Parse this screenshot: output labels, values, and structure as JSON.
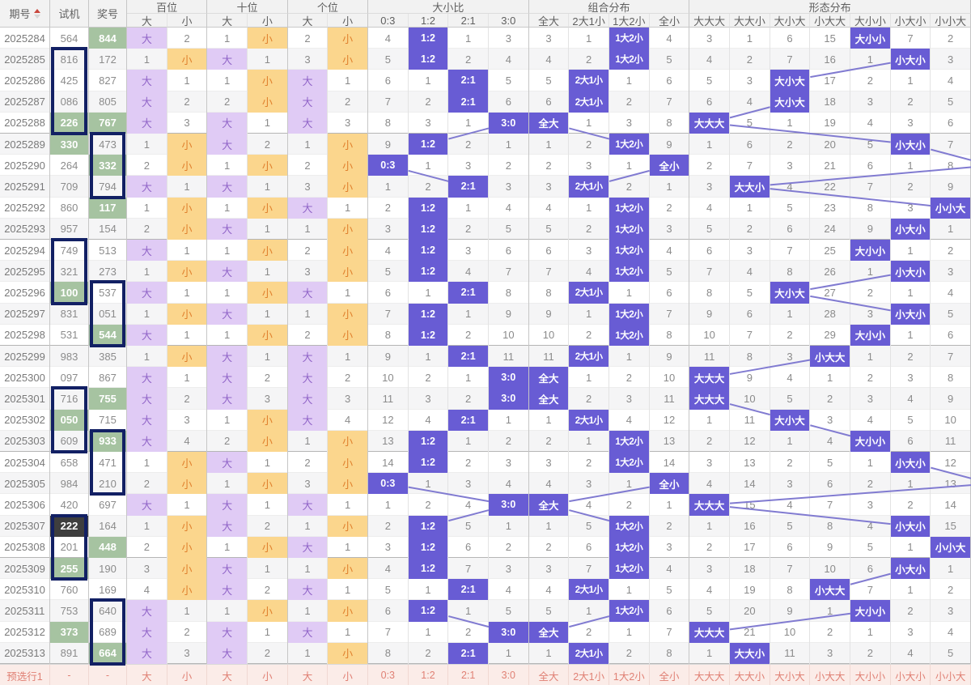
{
  "table": {
    "fixed_headers": [
      "期号",
      "试机",
      "奖号"
    ],
    "groups": [
      {
        "label": "百位",
        "span": 2
      },
      {
        "label": "十位",
        "span": 2
      },
      {
        "label": "个位",
        "span": 2
      },
      {
        "label": "大小比",
        "span": 4
      },
      {
        "label": "组合分布",
        "span": 4
      },
      {
        "label": "形态分布",
        "span": 7
      }
    ],
    "col_labels": [
      "大",
      "小",
      "大",
      "小",
      "大",
      "小",
      "0:3",
      "1:2",
      "2:1",
      "3:0",
      "全大",
      "2大1小",
      "1大2小",
      "全小",
      "大大大",
      "大大小",
      "大小大",
      "小大大",
      "大小小",
      "小大小",
      "小小大"
    ],
    "rows": [
      {
        "period": "2025284",
        "shiji": "564",
        "shiji_style": "",
        "jiang": "844",
        "jiang_style": "g",
        "cells": [
          "*",
          2,
          1,
          "*",
          2,
          "*",
          4,
          "*",
          1,
          3,
          3,
          1,
          "*",
          4,
          3,
          1,
          6,
          15,
          "*",
          7,
          2
        ]
      },
      {
        "period": "2025285",
        "shiji": "816",
        "shiji_style": "",
        "jiang": "172",
        "jiang_style": "",
        "cells": [
          1,
          "*",
          "*",
          1,
          3,
          "*",
          5,
          "*",
          2,
          4,
          4,
          2,
          "*",
          5,
          4,
          2,
          7,
          16,
          1,
          "*",
          3
        ]
      },
      {
        "period": "2025286",
        "shiji": "425",
        "shiji_style": "",
        "jiang": "827",
        "jiang_style": "",
        "cells": [
          "*",
          1,
          1,
          "*",
          "*",
          1,
          6,
          1,
          "*",
          5,
          5,
          "*",
          1,
          6,
          5,
          3,
          "*",
          17,
          2,
          1,
          4
        ]
      },
      {
        "period": "2025287",
        "shiji": "086",
        "shiji_style": "",
        "jiang": "805",
        "jiang_style": "",
        "cells": [
          "*",
          2,
          2,
          "*",
          "*",
          2,
          7,
          2,
          "*",
          6,
          6,
          "*",
          2,
          7,
          6,
          4,
          "*",
          18,
          3,
          2,
          5
        ]
      },
      {
        "period": "2025288",
        "shiji": "226",
        "shiji_style": "g",
        "jiang": "767",
        "jiang_style": "g",
        "cells": [
          "*",
          3,
          "*",
          1,
          "*",
          3,
          8,
          3,
          1,
          "*",
          "*",
          1,
          3,
          8,
          "*",
          5,
          1,
          19,
          4,
          3,
          6
        ]
      },
      {
        "period": "2025289",
        "shiji": "330",
        "shiji_style": "g",
        "jiang": "473",
        "jiang_style": "",
        "cells": [
          1,
          "*",
          "*",
          2,
          1,
          "*",
          9,
          "*",
          2,
          1,
          1,
          2,
          "*",
          9,
          1,
          6,
          2,
          20,
          5,
          "*",
          7
        ]
      },
      {
        "period": "2025290",
        "shiji": "264",
        "shiji_style": "",
        "jiang": "332",
        "jiang_style": "g",
        "cells": [
          2,
          "*",
          1,
          "*",
          2,
          "*",
          "*",
          1,
          3,
          2,
          2,
          3,
          1,
          "*",
          2,
          7,
          3,
          21,
          6,
          1,
          8
        ]
      },
      {
        "period": "2025291",
        "shiji": "709",
        "shiji_style": "",
        "jiang": "794",
        "jiang_style": "",
        "cells": [
          "*",
          1,
          "*",
          1,
          3,
          "*",
          1,
          2,
          "*",
          3,
          3,
          "*",
          2,
          1,
          3,
          "*",
          4,
          22,
          7,
          2,
          9
        ]
      },
      {
        "period": "2025292",
        "shiji": "860",
        "shiji_style": "",
        "jiang": "117",
        "jiang_style": "g",
        "cells": [
          1,
          "*",
          1,
          "*",
          "*",
          1,
          2,
          "*",
          1,
          4,
          4,
          1,
          "*",
          2,
          4,
          1,
          5,
          23,
          8,
          3,
          "*"
        ]
      },
      {
        "period": "2025293",
        "shiji": "957",
        "shiji_style": "",
        "jiang": "154",
        "jiang_style": "",
        "cells": [
          2,
          "*",
          "*",
          1,
          1,
          "*",
          3,
          "*",
          2,
          5,
          5,
          2,
          "*",
          3,
          5,
          2,
          6,
          24,
          9,
          "*",
          1
        ]
      },
      {
        "period": "2025294",
        "shiji": "749",
        "shiji_style": "",
        "jiang": "513",
        "jiang_style": "",
        "cells": [
          "*",
          1,
          1,
          "*",
          2,
          "*",
          4,
          "*",
          3,
          6,
          6,
          3,
          "*",
          4,
          6,
          3,
          7,
          25,
          "*",
          1,
          2
        ]
      },
      {
        "period": "2025295",
        "shiji": "321",
        "shiji_style": "",
        "jiang": "273",
        "jiang_style": "",
        "cells": [
          1,
          "*",
          "*",
          1,
          3,
          "*",
          5,
          "*",
          4,
          7,
          7,
          4,
          "*",
          5,
          7,
          4,
          8,
          26,
          1,
          "*",
          3
        ]
      },
      {
        "period": "2025296",
        "shiji": "100",
        "shiji_style": "g",
        "jiang": "537",
        "jiang_style": "",
        "cells": [
          "*",
          1,
          1,
          "*",
          "*",
          1,
          6,
          1,
          "*",
          8,
          8,
          "*",
          1,
          6,
          8,
          5,
          "*",
          27,
          2,
          1,
          4
        ]
      },
      {
        "period": "2025297",
        "shiji": "831",
        "shiji_style": "",
        "jiang": "051",
        "jiang_style": "",
        "cells": [
          1,
          "*",
          "*",
          1,
          1,
          "*",
          7,
          "*",
          1,
          9,
          9,
          1,
          "*",
          7,
          9,
          6,
          1,
          28,
          3,
          "*",
          5
        ]
      },
      {
        "period": "2025298",
        "shiji": "531",
        "shiji_style": "",
        "jiang": "544",
        "jiang_style": "g",
        "cells": [
          "*",
          1,
          1,
          "*",
          2,
          "*",
          8,
          "*",
          2,
          10,
          10,
          2,
          "*",
          8,
          10,
          7,
          2,
          29,
          "*",
          1,
          6
        ]
      },
      {
        "period": "2025299",
        "shiji": "983",
        "shiji_style": "",
        "jiang": "385",
        "jiang_style": "",
        "cells": [
          1,
          "*",
          "*",
          1,
          "*",
          1,
          9,
          1,
          "*",
          11,
          11,
          "*",
          1,
          9,
          11,
          8,
          3,
          "*",
          1,
          2,
          7
        ]
      },
      {
        "period": "2025300",
        "shiji": "097",
        "shiji_style": "",
        "jiang": "867",
        "jiang_style": "",
        "cells": [
          "*",
          1,
          "*",
          2,
          "*",
          2,
          10,
          2,
          1,
          "*",
          "*",
          1,
          2,
          10,
          "*",
          9,
          4,
          1,
          2,
          3,
          8
        ]
      },
      {
        "period": "2025301",
        "shiji": "716",
        "shiji_style": "",
        "jiang": "755",
        "jiang_style": "g",
        "cells": [
          "*",
          2,
          "*",
          3,
          "*",
          3,
          11,
          3,
          2,
          "*",
          "*",
          2,
          3,
          11,
          "*",
          10,
          5,
          2,
          3,
          4,
          9
        ]
      },
      {
        "period": "2025302",
        "shiji": "050",
        "shiji_style": "g",
        "jiang": "715",
        "jiang_style": "",
        "cells": [
          "*",
          3,
          1,
          "*",
          "*",
          4,
          12,
          4,
          "*",
          1,
          1,
          "*",
          4,
          12,
          1,
          11,
          "*",
          3,
          4,
          5,
          10
        ]
      },
      {
        "period": "2025303",
        "shiji": "609",
        "shiji_style": "",
        "jiang": "933",
        "jiang_style": "g",
        "cells": [
          "*",
          4,
          2,
          "*",
          1,
          "*",
          13,
          "*",
          1,
          2,
          2,
          1,
          "*",
          13,
          2,
          12,
          1,
          4,
          "*",
          6,
          11
        ]
      },
      {
        "period": "2025304",
        "shiji": "658",
        "shiji_style": "",
        "jiang": "471",
        "jiang_style": "",
        "cells": [
          1,
          "*",
          "*",
          1,
          2,
          "*",
          14,
          "*",
          2,
          3,
          3,
          2,
          "*",
          14,
          3,
          13,
          2,
          5,
          1,
          "*",
          12
        ]
      },
      {
        "period": "2025305",
        "shiji": "984",
        "shiji_style": "",
        "jiang": "210",
        "jiang_style": "",
        "cells": [
          2,
          "*",
          1,
          "*",
          3,
          "*",
          "*",
          1,
          3,
          4,
          4,
          3,
          1,
          "*",
          4,
          14,
          3,
          6,
          2,
          1,
          13
        ]
      },
      {
        "period": "2025306",
        "shiji": "420",
        "shiji_style": "",
        "jiang": "697",
        "jiang_style": "",
        "cells": [
          "*",
          1,
          "*",
          1,
          "*",
          1,
          1,
          2,
          4,
          "*",
          "*",
          4,
          2,
          1,
          "*",
          15,
          4,
          7,
          3,
          2,
          14
        ]
      },
      {
        "period": "2025307",
        "shiji": "222",
        "shiji_style": "d",
        "jiang": "164",
        "jiang_style": "",
        "cells": [
          1,
          "*",
          "*",
          2,
          1,
          "*",
          2,
          "*",
          5,
          1,
          1,
          5,
          "*",
          2,
          1,
          16,
          5,
          8,
          4,
          "*",
          15
        ]
      },
      {
        "period": "2025308",
        "shiji": "201",
        "shiji_style": "",
        "jiang": "448",
        "jiang_style": "g",
        "cells": [
          2,
          "*",
          1,
          "*",
          "*",
          1,
          3,
          "*",
          6,
          2,
          2,
          6,
          "*",
          3,
          2,
          17,
          6,
          9,
          5,
          1,
          "*"
        ]
      },
      {
        "period": "2025309",
        "shiji": "255",
        "shiji_style": "g",
        "jiang": "190",
        "jiang_style": "",
        "cells": [
          3,
          "*",
          "*",
          1,
          1,
          "*",
          4,
          "*",
          7,
          3,
          3,
          7,
          "*",
          4,
          3,
          18,
          7,
          10,
          6,
          "*",
          1
        ]
      },
      {
        "period": "2025310",
        "shiji": "760",
        "shiji_style": "",
        "jiang": "169",
        "jiang_style": "",
        "cells": [
          4,
          "*",
          "*",
          2,
          "*",
          1,
          5,
          1,
          "*",
          4,
          4,
          "*",
          1,
          5,
          4,
          19,
          8,
          "*",
          7,
          1,
          2
        ]
      },
      {
        "period": "2025311",
        "shiji": "753",
        "shiji_style": "",
        "jiang": "640",
        "jiang_style": "",
        "cells": [
          "*",
          1,
          1,
          "*",
          1,
          "*",
          6,
          "*",
          1,
          5,
          5,
          1,
          "*",
          6,
          5,
          20,
          9,
          1,
          "*",
          2,
          3
        ]
      },
      {
        "period": "2025312",
        "shiji": "373",
        "shiji_style": "g",
        "jiang": "689",
        "jiang_style": "",
        "cells": [
          "*",
          2,
          "*",
          1,
          "*",
          1,
          7,
          1,
          2,
          "*",
          "*",
          2,
          1,
          7,
          "*",
          21,
          10,
          2,
          1,
          3,
          4
        ]
      },
      {
        "period": "2025313",
        "shiji": "891",
        "shiji_style": "",
        "jiang": "664",
        "jiang_style": "g",
        "cells": [
          "*",
          3,
          "*",
          2,
          1,
          "*",
          8,
          2,
          "*",
          1,
          1,
          "*",
          2,
          8,
          1,
          "*",
          11,
          3,
          2,
          4,
          5
        ]
      }
    ],
    "boxes": [
      {
        "col": "shiji",
        "from": 1,
        "to": 4
      },
      {
        "col": "jiang",
        "from": 5,
        "to": 7
      },
      {
        "col": "shiji",
        "from": 10,
        "to": 12
      },
      {
        "col": "jiang",
        "from": 12,
        "to": 14
      },
      {
        "col": "shiji",
        "from": 17,
        "to": 19
      },
      {
        "col": "jiang",
        "from": 19,
        "to": 21
      },
      {
        "col": "shiji",
        "from": 23,
        "to": 25
      },
      {
        "col": "jiang",
        "from": 27,
        "to": 29
      }
    ],
    "footer": {
      "label": "预选行1",
      "shiji": "-",
      "jiang": "-"
    }
  },
  "colors": {
    "hit_purple": "#685CD4",
    "hit_da_bg": "#E0CBF5",
    "hit_da_text": "#9165C8",
    "hit_xiao_bg": "#FBD68D",
    "hit_xiao_text": "#E0812E",
    "green_cell": "#A6C3A1",
    "dark_cell": "#3E3E3E",
    "box_border": "#122064",
    "line": "#817BD1",
    "header_bg": "#f2f2f2",
    "stripe": "#f5f5f6",
    "footer_bg": "#FBECE8",
    "footer_text": "#E08175",
    "border_light": "#e3e3e3",
    "border_dark": "#c6c6c6",
    "row_sep": "#ededed",
    "group_sep": "#b5b5b5"
  }
}
